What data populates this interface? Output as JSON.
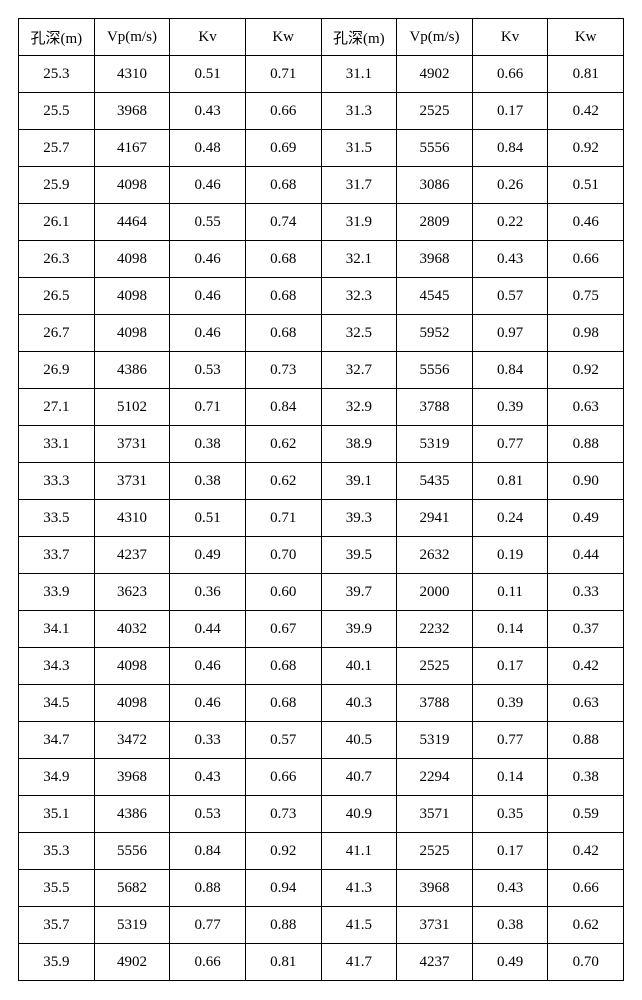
{
  "table": {
    "type": "table",
    "background_color": "#ffffff",
    "border_color": "#000000",
    "font_size": 15,
    "columns": [
      {
        "label": "孔深(m)"
      },
      {
        "label": "Vp(m/s)"
      },
      {
        "label": "Kv"
      },
      {
        "label": "Kw"
      },
      {
        "label": "孔深(m)"
      },
      {
        "label": "Vp(m/s)"
      },
      {
        "label": "Kv"
      },
      {
        "label": "Kw"
      }
    ],
    "rows": [
      [
        "25.3",
        "4310",
        "0.51",
        "0.71",
        "31.1",
        "4902",
        "0.66",
        "0.81"
      ],
      [
        "25.5",
        "3968",
        "0.43",
        "0.66",
        "31.3",
        "2525",
        "0.17",
        "0.42"
      ],
      [
        "25.7",
        "4167",
        "0.48",
        "0.69",
        "31.5",
        "5556",
        "0.84",
        "0.92"
      ],
      [
        "25.9",
        "4098",
        "0.46",
        "0.68",
        "31.7",
        "3086",
        "0.26",
        "0.51"
      ],
      [
        "26.1",
        "4464",
        "0.55",
        "0.74",
        "31.9",
        "2809",
        "0.22",
        "0.46"
      ],
      [
        "26.3",
        "4098",
        "0.46",
        "0.68",
        "32.1",
        "3968",
        "0.43",
        "0.66"
      ],
      [
        "26.5",
        "4098",
        "0.46",
        "0.68",
        "32.3",
        "4545",
        "0.57",
        "0.75"
      ],
      [
        "26.7",
        "4098",
        "0.46",
        "0.68",
        "32.5",
        "5952",
        "0.97",
        "0.98"
      ],
      [
        "26.9",
        "4386",
        "0.53",
        "0.73",
        "32.7",
        "5556",
        "0.84",
        "0.92"
      ],
      [
        "27.1",
        "5102",
        "0.71",
        "0.84",
        "32.9",
        "3788",
        "0.39",
        "0.63"
      ],
      [
        "33.1",
        "3731",
        "0.38",
        "0.62",
        "38.9",
        "5319",
        "0.77",
        "0.88"
      ],
      [
        "33.3",
        "3731",
        "0.38",
        "0.62",
        "39.1",
        "5435",
        "0.81",
        "0.90"
      ],
      [
        "33.5",
        "4310",
        "0.51",
        "0.71",
        "39.3",
        "2941",
        "0.24",
        "0.49"
      ],
      [
        "33.7",
        "4237",
        "0.49",
        "0.70",
        "39.5",
        "2632",
        "0.19",
        "0.44"
      ],
      [
        "33.9",
        "3623",
        "0.36",
        "0.60",
        "39.7",
        "2000",
        "0.11",
        "0.33"
      ],
      [
        "34.1",
        "4032",
        "0.44",
        "0.67",
        "39.9",
        "2232",
        "0.14",
        "0.37"
      ],
      [
        "34.3",
        "4098",
        "0.46",
        "0.68",
        "40.1",
        "2525",
        "0.17",
        "0.42"
      ],
      [
        "34.5",
        "4098",
        "0.46",
        "0.68",
        "40.3",
        "3788",
        "0.39",
        "0.63"
      ],
      [
        "34.7",
        "3472",
        "0.33",
        "0.57",
        "40.5",
        "5319",
        "0.77",
        "0.88"
      ],
      [
        "34.9",
        "3968",
        "0.43",
        "0.66",
        "40.7",
        "2294",
        "0.14",
        "0.38"
      ],
      [
        "35.1",
        "4386",
        "0.53",
        "0.73",
        "40.9",
        "3571",
        "0.35",
        "0.59"
      ],
      [
        "35.3",
        "5556",
        "0.84",
        "0.92",
        "41.1",
        "2525",
        "0.17",
        "0.42"
      ],
      [
        "35.5",
        "5682",
        "0.88",
        "0.94",
        "41.3",
        "3968",
        "0.43",
        "0.66"
      ],
      [
        "35.7",
        "5319",
        "0.77",
        "0.88",
        "41.5",
        "3731",
        "0.38",
        "0.62"
      ],
      [
        "35.9",
        "4902",
        "0.66",
        "0.81",
        "41.7",
        "4237",
        "0.49",
        "0.70"
      ]
    ]
  }
}
